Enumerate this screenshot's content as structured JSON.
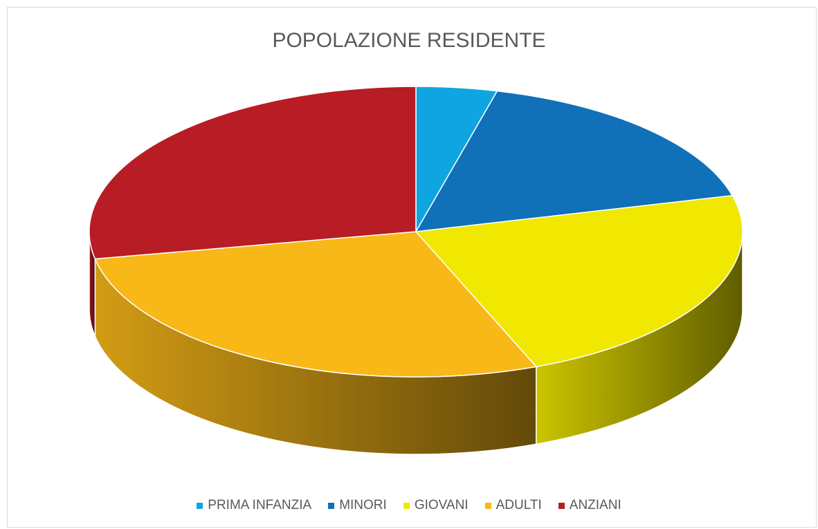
{
  "chart_data": {
    "type": "pie",
    "title": "POPOLAZIONE RESIDENTE",
    "categories": [
      "PRIMA INFANZIA",
      "MINORI",
      "GIOVANI",
      "ADULTI",
      "ANZIANI"
    ],
    "values": [
      4,
      17,
      23,
      28,
      28
    ],
    "colors": [
      "#0ea5e0",
      "#1070b8",
      "#f0e800",
      "#f8b818",
      "#b81c24"
    ],
    "legend": "bottom"
  }
}
